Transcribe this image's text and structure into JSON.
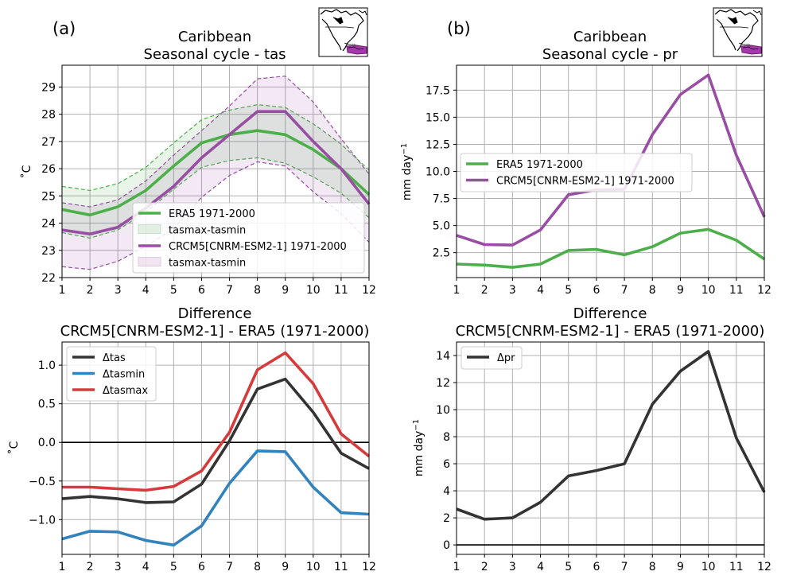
{
  "chart_data": [
    {
      "panel_label": "(a)",
      "type": "line",
      "title": "Caribbean\nSeasonal cycle - tas",
      "xlabel": "",
      "ylabel": "˚C",
      "x": [
        1,
        2,
        3,
        4,
        5,
        6,
        7,
        8,
        9,
        10,
        11,
        12
      ],
      "xlim": [
        1,
        12
      ],
      "ylim": [
        22,
        29.8
      ],
      "yticks": [
        22,
        23,
        24,
        25,
        26,
        27,
        28,
        29
      ],
      "ytick_labels": [
        "22",
        "23",
        "24",
        "25",
        "26",
        "27",
        "28",
        "29"
      ],
      "grid": true,
      "legend_position": "lower right",
      "series": [
        {
          "name": "ERA5 1971-2000",
          "color": "#4daf4a",
          "values": [
            24.5,
            24.3,
            24.6,
            25.2,
            26.1,
            26.95,
            27.25,
            27.4,
            27.25,
            26.7,
            26.0,
            25.05
          ],
          "band_name": "tasmax-tasmin",
          "band_low": [
            23.65,
            23.45,
            23.75,
            24.4,
            25.25,
            26.05,
            26.3,
            26.4,
            26.2,
            25.7,
            25.1,
            24.2
          ],
          "band_high": [
            25.35,
            25.2,
            25.45,
            26.05,
            26.95,
            27.8,
            28.15,
            28.35,
            28.25,
            27.65,
            26.9,
            25.95
          ]
        },
        {
          "name": "CRCM5[CNRM-ESM2-1] 1971-2000",
          "color": "#984ea3",
          "values": [
            23.75,
            23.6,
            23.85,
            24.55,
            25.35,
            26.4,
            27.25,
            28.1,
            28.1,
            27.0,
            26.0,
            24.7
          ],
          "band_name": "tasmax-tasmin",
          "band_low": [
            22.4,
            22.3,
            22.6,
            23.15,
            23.8,
            24.95,
            25.75,
            26.25,
            26.1,
            25.15,
            24.35,
            23.3
          ],
          "band_high": [
            24.75,
            24.6,
            24.85,
            25.55,
            26.5,
            27.4,
            28.3,
            29.3,
            29.4,
            28.45,
            27.1,
            25.8
          ]
        }
      ],
      "inset": "map-inset"
    },
    {
      "panel_label": "(b)",
      "type": "line",
      "title": "Caribbean\nSeasonal cycle - pr",
      "xlabel": "",
      "ylabel": "mm day⁻¹",
      "x": [
        1,
        2,
        3,
        4,
        5,
        6,
        7,
        8,
        9,
        10,
        11,
        12
      ],
      "xlim": [
        1,
        12
      ],
      "ylim": [
        0.2,
        19.8
      ],
      "yticks": [
        2.5,
        5.0,
        7.5,
        10.0,
        12.5,
        15.0,
        17.5
      ],
      "ytick_labels": [
        "2.5",
        "5.0",
        "7.5",
        "10.0",
        "12.5",
        "15.0",
        "17.5"
      ],
      "grid": true,
      "legend_position": "center left",
      "series": [
        {
          "name": "ERA5 1971-2000",
          "color": "#4daf4a",
          "values": [
            1.45,
            1.35,
            1.15,
            1.45,
            2.7,
            2.8,
            2.3,
            3.05,
            4.3,
            4.65,
            3.65,
            1.9
          ]
        },
        {
          "name": "CRCM5[CNRM-ESM2-1] 1971-2000",
          "color": "#984ea3",
          "values": [
            4.1,
            3.25,
            3.2,
            4.6,
            7.85,
            8.3,
            8.35,
            13.4,
            17.1,
            18.9,
            11.5,
            5.8
          ]
        }
      ],
      "inset": "map-inset"
    },
    {
      "type": "line",
      "title": "Difference\nCRCM5[CNRM-ESM2-1] - ERA5 (1971-2000)",
      "xlabel": "",
      "ylabel": "˚C",
      "x": [
        1,
        2,
        3,
        4,
        5,
        6,
        7,
        8,
        9,
        10,
        11,
        12
      ],
      "xlim": [
        1,
        12
      ],
      "ylim": [
        -1.45,
        1.3
      ],
      "yticks": [
        -1.0,
        -0.5,
        0.0,
        0.5,
        1.0
      ],
      "ytick_labels": [
        "−1.0",
        "−0.5",
        "0.0",
        "0.5",
        "1.0"
      ],
      "zero_line": 0,
      "grid": true,
      "legend_position": "upper left",
      "series": [
        {
          "name": "Δtas",
          "color": "#333333",
          "values": [
            -0.73,
            -0.7,
            -0.73,
            -0.78,
            -0.77,
            -0.54,
            0.02,
            0.69,
            0.82,
            0.39,
            -0.14,
            -0.34
          ]
        },
        {
          "name": "Δtasmin",
          "color": "#3182bd",
          "values": [
            -1.25,
            -1.15,
            -1.16,
            -1.27,
            -1.33,
            -1.08,
            -0.53,
            -0.11,
            -0.12,
            -0.58,
            -0.91,
            -0.93
          ]
        },
        {
          "name": "Δtasmax",
          "color": "#d73a3a",
          "values": [
            -0.58,
            -0.58,
            -0.6,
            -0.62,
            -0.57,
            -0.37,
            0.13,
            0.94,
            1.16,
            0.76,
            0.11,
            -0.18
          ]
        }
      ]
    },
    {
      "type": "line",
      "title": "Difference\nCRCM5[CNRM-ESM2-1] - ERA5 (1971-2000)",
      "xlabel": "",
      "ylabel": "mm day⁻¹",
      "x": [
        1,
        2,
        3,
        4,
        5,
        6,
        7,
        8,
        9,
        10,
        11,
        12
      ],
      "xlim": [
        1,
        12
      ],
      "ylim": [
        -0.7,
        15.0
      ],
      "yticks": [
        0,
        2,
        4,
        6,
        8,
        10,
        12,
        14
      ],
      "ytick_labels": [
        "0",
        "2",
        "4",
        "6",
        "8",
        "10",
        "12",
        "14"
      ],
      "zero_line": 0,
      "grid": true,
      "legend_position": "upper left",
      "series": [
        {
          "name": "Δpr",
          "color": "#333333",
          "values": [
            2.65,
            1.9,
            2.0,
            3.15,
            5.1,
            5.5,
            6.0,
            10.4,
            12.85,
            14.3,
            7.9,
            3.9
          ]
        }
      ]
    }
  ]
}
